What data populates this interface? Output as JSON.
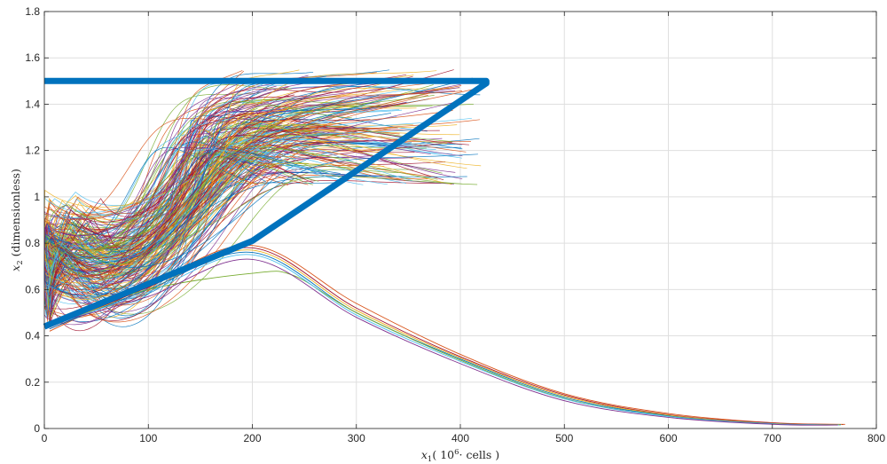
{
  "chart_data": {
    "type": "line",
    "title": "",
    "xlabel": {
      "var": "x",
      "sub": "1",
      "open": "( 10",
      "sup": "6",
      "rest": "· cells )"
    },
    "ylabel": {
      "var": "x",
      "sub": "2",
      "rest": " (dimensionless)"
    },
    "xlim": [
      0,
      800
    ],
    "ylim": [
      0,
      1.8
    ],
    "xticks": [
      0,
      100,
      200,
      300,
      400,
      500,
      600,
      700,
      800
    ],
    "yticks": [
      0,
      0.2,
      0.4,
      0.6,
      0.8,
      1,
      1.2,
      1.4,
      1.6,
      1.8
    ],
    "xtick_labels": [
      "0",
      "100",
      "200",
      "300",
      "400",
      "500",
      "600",
      "700",
      "800"
    ],
    "ytick_labels": [
      "0",
      "0.2",
      "0.4",
      "0.6",
      "0.8",
      "1",
      "1.2",
      "1.4",
      "1.6",
      "1.8"
    ],
    "grid": true,
    "boundary": {
      "color": "#0072BD",
      "points": [
        [
          0,
          0.44
        ],
        [
          200,
          0.81
        ],
        [
          425,
          1.49
        ],
        [
          425,
          1.5
        ],
        [
          0,
          1.5
        ]
      ]
    },
    "trajectory_colors": [
      "#0072BD",
      "#D95319",
      "#EDB120",
      "#7E2F8E",
      "#77AC30",
      "#4DBEEE",
      "#A2142F"
    ],
    "trajectory_count": 240,
    "escape_trajectories": [
      {
        "color": "#D95319",
        "points": [
          [
            5,
            0.42
          ],
          [
            100,
            0.62
          ],
          [
            200,
            0.79
          ],
          [
            300,
            0.54
          ],
          [
            400,
            0.32
          ],
          [
            500,
            0.15
          ],
          [
            600,
            0.065
          ],
          [
            700,
            0.025
          ],
          [
            770,
            0.018
          ]
        ]
      },
      {
        "color": "#A2142F",
        "points": [
          [
            5,
            0.43
          ],
          [
            100,
            0.61
          ],
          [
            200,
            0.78
          ],
          [
            300,
            0.52
          ],
          [
            400,
            0.31
          ],
          [
            500,
            0.145
          ],
          [
            600,
            0.06
          ],
          [
            700,
            0.024
          ],
          [
            768,
            0.017
          ]
        ]
      },
      {
        "color": "#EDB120",
        "points": [
          [
            5,
            0.44
          ],
          [
            100,
            0.6
          ],
          [
            200,
            0.77
          ],
          [
            300,
            0.51
          ],
          [
            400,
            0.305
          ],
          [
            500,
            0.14
          ],
          [
            600,
            0.058
          ],
          [
            700,
            0.022
          ],
          [
            767,
            0.017
          ]
        ]
      },
      {
        "color": "#0072BD",
        "points": [
          [
            5,
            0.43
          ],
          [
            100,
            0.6
          ],
          [
            200,
            0.76
          ],
          [
            300,
            0.5
          ],
          [
            400,
            0.3
          ],
          [
            500,
            0.135
          ],
          [
            600,
            0.055
          ],
          [
            700,
            0.021
          ],
          [
            766,
            0.016
          ]
        ]
      },
      {
        "color": "#77AC30",
        "points": [
          [
            5,
            0.46
          ],
          [
            100,
            0.6
          ],
          [
            200,
            0.67
          ],
          [
            240,
            0.66
          ],
          [
            300,
            0.5
          ],
          [
            400,
            0.295
          ],
          [
            500,
            0.13
          ],
          [
            600,
            0.053
          ],
          [
            700,
            0.02
          ],
          [
            765,
            0.016
          ]
        ]
      },
      {
        "color": "#4DBEEE",
        "points": [
          [
            5,
            0.44
          ],
          [
            100,
            0.59
          ],
          [
            200,
            0.75
          ],
          [
            300,
            0.49
          ],
          [
            400,
            0.29
          ],
          [
            500,
            0.128
          ],
          [
            600,
            0.052
          ],
          [
            700,
            0.02
          ],
          [
            764,
            0.015
          ]
        ]
      },
      {
        "color": "#7E2F8E",
        "points": [
          [
            5,
            0.45
          ],
          [
            100,
            0.57
          ],
          [
            200,
            0.73
          ],
          [
            300,
            0.48
          ],
          [
            400,
            0.28
          ],
          [
            500,
            0.12
          ],
          [
            600,
            0.048
          ],
          [
            700,
            0.018
          ],
          [
            763,
            0.015
          ]
        ]
      }
    ]
  }
}
